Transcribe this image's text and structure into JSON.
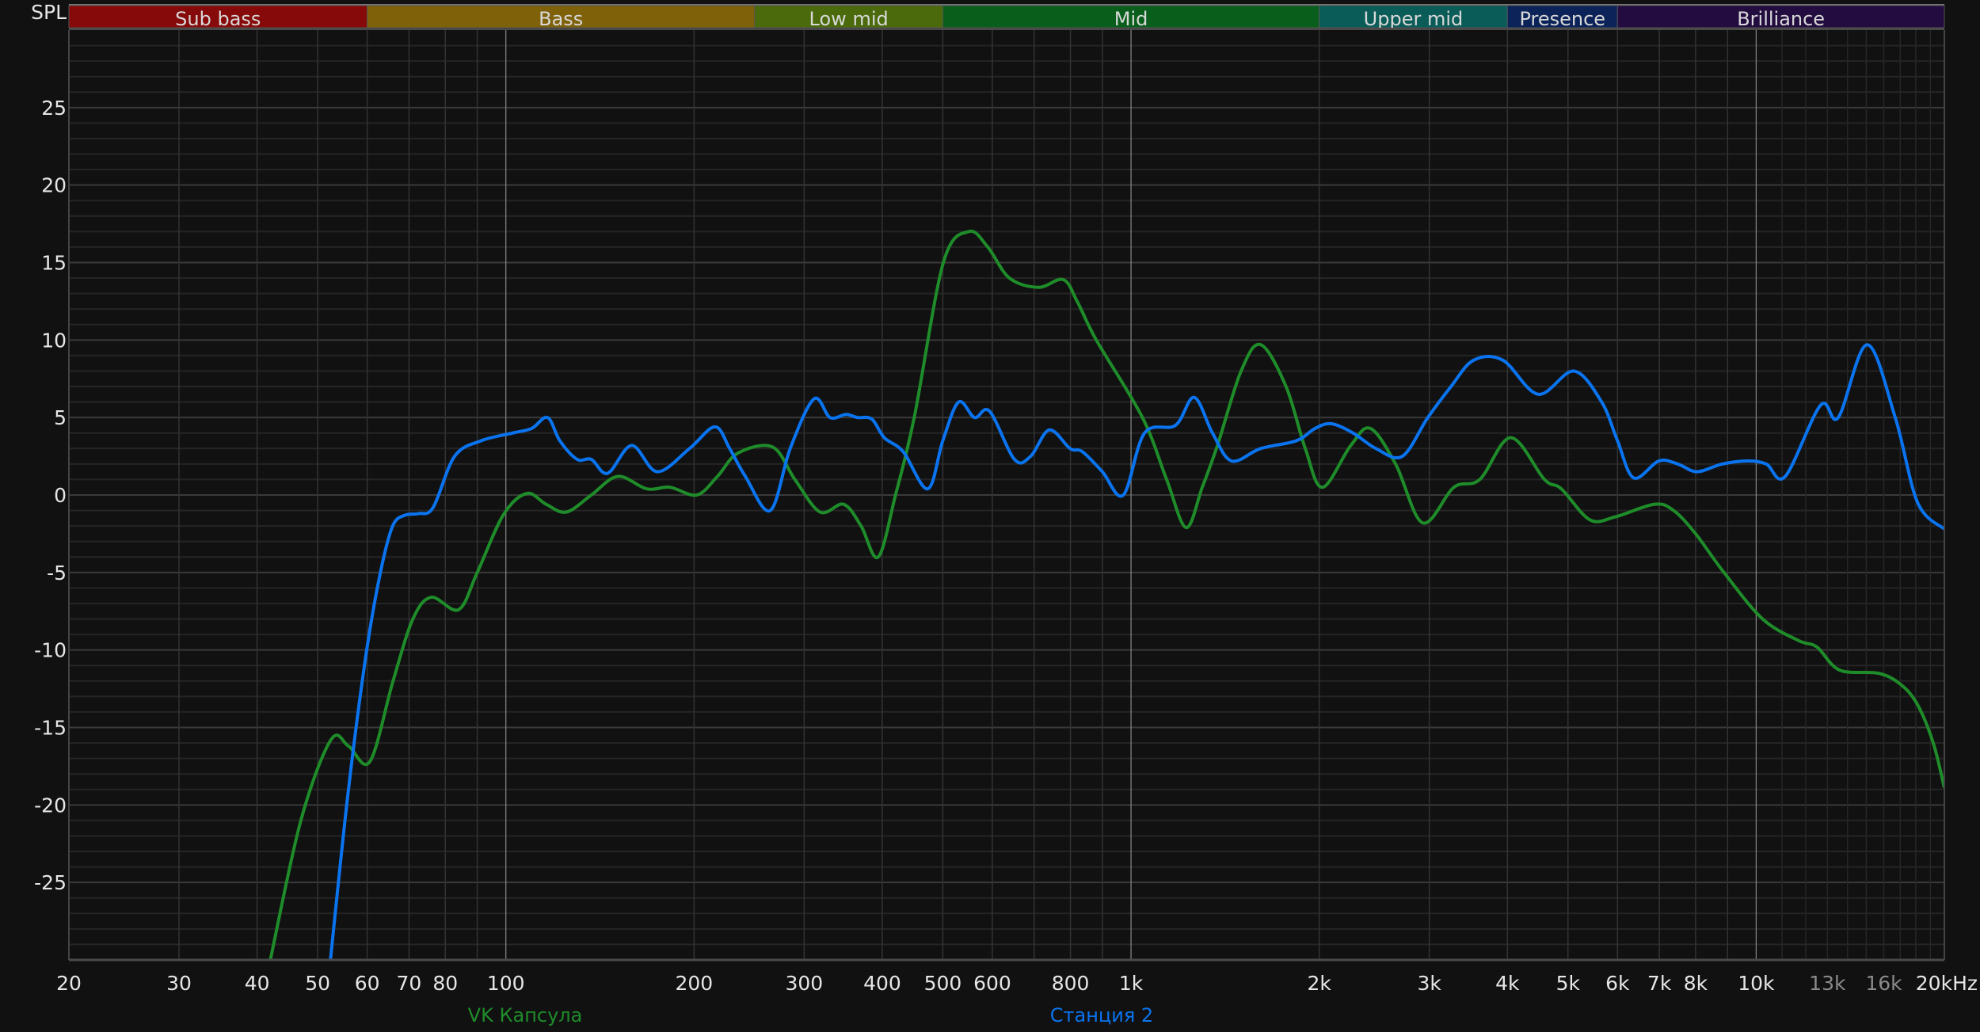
{
  "chart_data": {
    "type": "line",
    "ylabel": "SPL",
    "xscale": "log",
    "xlim": [
      20,
      20000
    ],
    "ylim": [
      -30,
      30
    ],
    "grid": true,
    "legend_placement": "bottom",
    "yticks": [
      25,
      20,
      15,
      10,
      5,
      0,
      -5,
      -10,
      -15,
      -20,
      -25
    ],
    "ytick_labels": [
      "25",
      "20",
      "15",
      "10",
      "5",
      "0",
      "-5",
      "-10",
      "-15",
      "-20",
      "-25"
    ],
    "xticks": [
      {
        "f": 20,
        "label": "20"
      },
      {
        "f": 30,
        "label": "30"
      },
      {
        "f": 40,
        "label": "40"
      },
      {
        "f": 50,
        "label": "50"
      },
      {
        "f": 60,
        "label": "60"
      },
      {
        "f": 70,
        "label": "70"
      },
      {
        "f": 80,
        "label": "80"
      },
      {
        "f": 100,
        "label": "100"
      },
      {
        "f": 200,
        "label": "200"
      },
      {
        "f": 300,
        "label": "300"
      },
      {
        "f": 400,
        "label": "400"
      },
      {
        "f": 500,
        "label": "500"
      },
      {
        "f": 600,
        "label": "600"
      },
      {
        "f": 800,
        "label": "800"
      },
      {
        "f": 1000,
        "label": "1k"
      },
      {
        "f": 2000,
        "label": "2k"
      },
      {
        "f": 3000,
        "label": "3k"
      },
      {
        "f": 4000,
        "label": "4k"
      },
      {
        "f": 5000,
        "label": "5k"
      },
      {
        "f": 6000,
        "label": "6k"
      },
      {
        "f": 7000,
        "label": "7k"
      },
      {
        "f": 8000,
        "label": "8k"
      },
      {
        "f": 10000,
        "label": "10k"
      },
      {
        "f": 13000,
        "label": "13k",
        "dim": true
      },
      {
        "f": 16000,
        "label": "16k",
        "dim": true
      },
      {
        "f": 20000,
        "label": "20kHz"
      }
    ],
    "bands": [
      {
        "label": "Sub bass",
        "from": 20,
        "to": 60,
        "color": "#870a0a"
      },
      {
        "label": "Bass",
        "from": 60,
        "to": 250,
        "color": "#7f6109"
      },
      {
        "label": "Low mid",
        "from": 250,
        "to": 500,
        "color": "#4a6a0b"
      },
      {
        "label": "Mid",
        "from": 500,
        "to": 2000,
        "color": "#0a5e1c"
      },
      {
        "label": "Upper mid",
        "from": 2000,
        "to": 4000,
        "color": "#0a5c58"
      },
      {
        "label": "Presence",
        "from": 4000,
        "to": 6000,
        "color": "#0b2358"
      },
      {
        "label": "Brilliance",
        "from": 6000,
        "to": 20000,
        "color": "#230c40"
      }
    ],
    "series": [
      {
        "name": "VK Капсула",
        "color": "#1f8c2a",
        "points": [
          [
            38,
            -40
          ],
          [
            42,
            -30
          ],
          [
            47,
            -21
          ],
          [
            52.5,
            -15.8
          ],
          [
            56,
            -16.2
          ],
          [
            60.6,
            -17.2
          ],
          [
            66,
            -12
          ],
          [
            71,
            -8
          ],
          [
            76,
            -6.6
          ],
          [
            84,
            -7.4
          ],
          [
            90,
            -5
          ],
          [
            99,
            -1.3
          ],
          [
            108,
            0.1
          ],
          [
            116,
            -0.6
          ],
          [
            125,
            -1.1
          ],
          [
            137,
            0
          ],
          [
            151,
            1.2
          ],
          [
            168,
            0.4
          ],
          [
            183,
            0.5
          ],
          [
            202,
            0
          ],
          [
            218,
            1.2
          ],
          [
            235,
            2.7
          ],
          [
            267,
            3.1
          ],
          [
            290,
            1
          ],
          [
            318,
            -1.1
          ],
          [
            347,
            -0.6
          ],
          [
            370,
            -2
          ],
          [
            394,
            -4
          ],
          [
            420,
            0
          ],
          [
            450,
            5
          ],
          [
            501,
            15
          ],
          [
            550,
            17
          ],
          [
            590,
            16
          ],
          [
            639,
            14
          ],
          [
            711,
            13.4
          ],
          [
            779,
            13.9
          ],
          [
            820,
            12.5
          ],
          [
            880,
            10
          ],
          [
            1043,
            5
          ],
          [
            1140,
            1
          ],
          [
            1225,
            -2.1
          ],
          [
            1300,
            0.5
          ],
          [
            1375,
            3.2
          ],
          [
            1500,
            8
          ],
          [
            1613,
            9.7
          ],
          [
            1770,
            7
          ],
          [
            1900,
            3
          ],
          [
            2024,
            0.5
          ],
          [
            2247,
            3.2
          ],
          [
            2414,
            4.3
          ],
          [
            2650,
            2
          ],
          [
            2928,
            -1.8
          ],
          [
            3285,
            0.5
          ],
          [
            3613,
            1
          ],
          [
            4050,
            3.7
          ],
          [
            4586,
            1
          ],
          [
            4880,
            0.4
          ],
          [
            5420,
            -1.6
          ],
          [
            5960,
            -1.4
          ],
          [
            6870,
            -0.6
          ],
          [
            7380,
            -1
          ],
          [
            8000,
            -2.5
          ],
          [
            8880,
            -5
          ],
          [
            10240,
            -8
          ],
          [
            11700,
            -9.4
          ],
          [
            12500,
            -9.8
          ],
          [
            13600,
            -11.3
          ],
          [
            15680,
            -11.5
          ],
          [
            17000,
            -12.2
          ],
          [
            18100,
            -13.5
          ],
          [
            19200,
            -16
          ],
          [
            20000,
            -18.9
          ]
        ]
      },
      {
        "name": "Станция 2",
        "color": "#0a74f0",
        "points": [
          [
            50,
            -40
          ],
          [
            52.4,
            -30
          ],
          [
            56,
            -19
          ],
          [
            59.9,
            -10
          ],
          [
            63,
            -5
          ],
          [
            65.9,
            -2
          ],
          [
            69,
            -1.3
          ],
          [
            72.5,
            -1.2
          ],
          [
            76.5,
            -0.8
          ],
          [
            82.8,
            2.5
          ],
          [
            91.3,
            3.5
          ],
          [
            102.6,
            4
          ],
          [
            110,
            4.3
          ],
          [
            116.6,
            5
          ],
          [
            122,
            3.5
          ],
          [
            130,
            2.3
          ],
          [
            137,
            2.3
          ],
          [
            145.5,
            1.4
          ],
          [
            159,
            3.2
          ],
          [
            174.6,
            1.5
          ],
          [
            196.7,
            3
          ],
          [
            216,
            4.4
          ],
          [
            228,
            3
          ],
          [
            241.6,
            1.2
          ],
          [
            264.8,
            -1
          ],
          [
            285,
            3
          ],
          [
            311,
            6.2
          ],
          [
            330,
            5
          ],
          [
            350,
            5.2
          ],
          [
            365,
            5
          ],
          [
            385,
            4.9
          ],
          [
            403,
            3.7
          ],
          [
            432,
            2.8
          ],
          [
            473,
            0.4
          ],
          [
            500,
            3.5
          ],
          [
            530,
            6
          ],
          [
            562,
            5
          ],
          [
            594,
            5.4
          ],
          [
            651,
            2.3
          ],
          [
            691,
            2.5
          ],
          [
            740,
            4.2
          ],
          [
            799,
            3
          ],
          [
            836,
            2.8
          ],
          [
            900,
            1.5
          ],
          [
            972,
            0
          ],
          [
            1051,
            4
          ],
          [
            1178,
            4.5
          ],
          [
            1262,
            6.3
          ],
          [
            1350,
            4
          ],
          [
            1448,
            2.2
          ],
          [
            1612,
            3
          ],
          [
            1838,
            3.5
          ],
          [
            1970,
            4.3
          ],
          [
            2092,
            4.6
          ],
          [
            2266,
            4
          ],
          [
            2465,
            3
          ],
          [
            2716,
            2.5
          ],
          [
            2984,
            5
          ],
          [
            3250,
            7
          ],
          [
            3532,
            8.7
          ],
          [
            3934,
            8.7
          ],
          [
            4479,
            6.5
          ],
          [
            5109,
            8
          ],
          [
            5660,
            6
          ],
          [
            6000,
            3.5
          ],
          [
            6370,
            1.1
          ],
          [
            6990,
            2.2
          ],
          [
            7495,
            2
          ],
          [
            8040,
            1.5
          ],
          [
            8820,
            2
          ],
          [
            9690,
            2.2
          ],
          [
            10380,
            2
          ],
          [
            11130,
            1.2
          ],
          [
            12680,
            5.8
          ],
          [
            13530,
            5
          ],
          [
            15050,
            9.7
          ],
          [
            16690,
            5
          ],
          [
            18130,
            -0.5
          ],
          [
            20000,
            -2.2
          ]
        ]
      }
    ]
  }
}
